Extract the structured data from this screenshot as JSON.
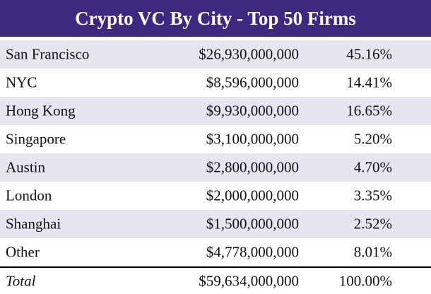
{
  "header": {
    "title": "Crypto VC By City - Top 50 Firms"
  },
  "table": {
    "rows": [
      [
        "San Francisco",
        "$26,930,000,000",
        "45.16%"
      ],
      [
        "NYC",
        "$8,596,000,000",
        "14.41%"
      ],
      [
        "Hong Kong",
        "$9,930,000,000",
        "16.65%"
      ],
      [
        "Singapore",
        "$3,100,000,000",
        "5.20%"
      ],
      [
        "Austin",
        "$2,800,000,000",
        "4.70%"
      ],
      [
        "London",
        "$2,000,000,000",
        "3.35%"
      ],
      [
        "Shanghai",
        "$1,500,000,000",
        "2.52%"
      ],
      [
        "Other",
        "$4,778,000,000",
        "8.01%"
      ]
    ],
    "total": [
      "Total",
      "$59,634,000,000",
      "100.00%"
    ]
  }
}
